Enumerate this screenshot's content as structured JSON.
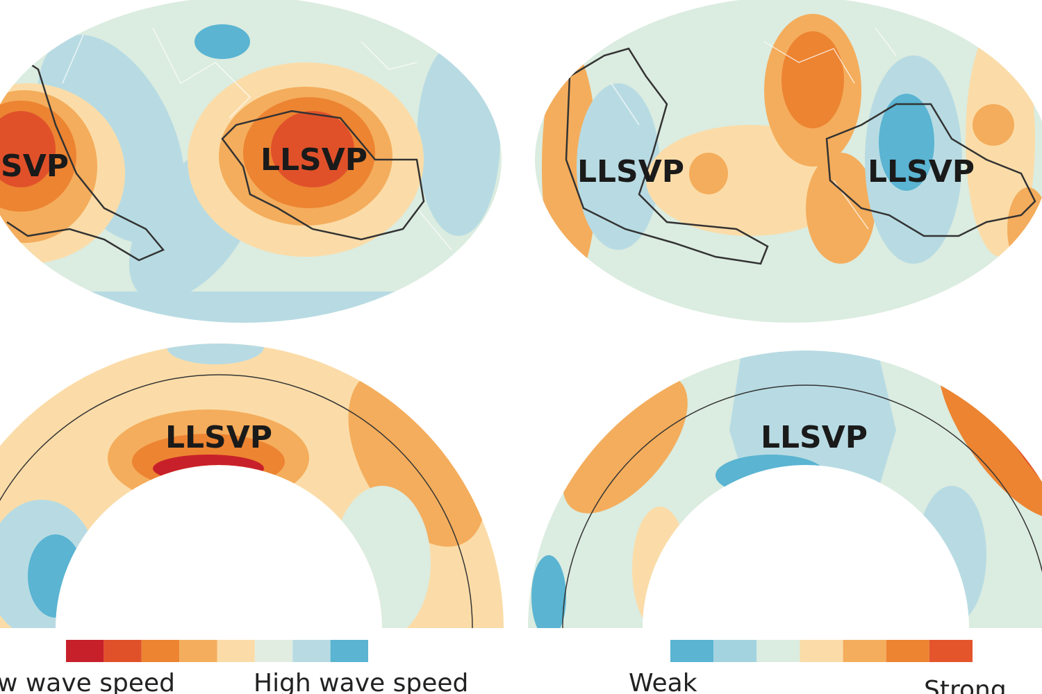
{
  "maps": [
    {
      "labels": [
        "LLSVP",
        "LLSVP"
      ]
    },
    {
      "labels": [
        "LLSVP",
        "LLSVP"
      ]
    }
  ],
  "cross_sections": [
    {
      "label": "LLSVP"
    },
    {
      "label": "LLSVP"
    }
  ],
  "legends": [
    {
      "low": "Low wave speed",
      "high": "High wave speed",
      "colors": [
        "#c8202a",
        "#e0512a",
        "#ec8432",
        "#f4ad5c",
        "#fbdca8",
        "#e0ede0",
        "#b8dbe3",
        "#5ab4d2"
      ]
    },
    {
      "low": "Weak",
      "high": "Strong",
      "colors": [
        "#5ab4d2",
        "#a4d3e0",
        "#dbece0",
        "#fbdca8",
        "#f4ad5c",
        "#ec8432",
        "#e4552c"
      ]
    }
  ]
}
